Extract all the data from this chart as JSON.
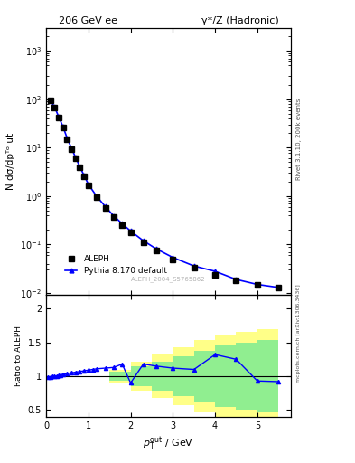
{
  "title_left": "206 GeV ee",
  "title_right": "γ*/Z (Hadronic)",
  "ylabel_main": "N dσ/dpᵀᵒ ut",
  "ylabel_ratio": "Ratio to ALEPH",
  "right_label_main": "Rivet 3.1.10, 200k events",
  "right_label_ratio": "mcplots.cern.ch [arXiv:1306.3436]",
  "watermark": "ALEPH_2004_S5765862",
  "data_x": [
    0.1,
    0.2,
    0.3,
    0.4,
    0.5,
    0.6,
    0.7,
    0.8,
    0.9,
    1.0,
    1.2,
    1.4,
    1.6,
    1.8,
    2.0,
    2.3,
    2.6,
    3.0,
    3.5,
    4.0,
    4.5,
    5.0,
    5.5
  ],
  "data_y": [
    95,
    68,
    42,
    26,
    15,
    9.5,
    6.0,
    3.9,
    2.6,
    1.7,
    0.95,
    0.58,
    0.37,
    0.25,
    0.175,
    0.11,
    0.075,
    0.05,
    0.033,
    0.024,
    0.018,
    0.015,
    0.013
  ],
  "mc_x": [
    0.1,
    0.2,
    0.3,
    0.4,
    0.5,
    0.6,
    0.7,
    0.8,
    0.9,
    1.0,
    1.2,
    1.4,
    1.6,
    1.8,
    2.0,
    2.3,
    2.6,
    3.0,
    3.5,
    4.0,
    4.5,
    5.0,
    5.5
  ],
  "mc_y": [
    95,
    69,
    43,
    27,
    15.5,
    9.8,
    6.2,
    4.0,
    2.65,
    1.75,
    0.98,
    0.61,
    0.39,
    0.27,
    0.19,
    0.12,
    0.082,
    0.054,
    0.036,
    0.028,
    0.019,
    0.015,
    0.013
  ],
  "ratio_x": [
    0.05,
    0.1,
    0.15,
    0.2,
    0.25,
    0.3,
    0.35,
    0.4,
    0.5,
    0.6,
    0.7,
    0.8,
    0.9,
    1.0,
    1.1,
    1.2,
    1.4,
    1.6,
    1.8,
    2.0,
    2.3,
    2.6,
    3.0,
    3.5,
    4.0,
    4.5,
    5.0,
    5.5
  ],
  "ratio_y": [
    0.98,
    0.99,
    0.995,
    1.0,
    1.005,
    1.01,
    1.02,
    1.03,
    1.04,
    1.05,
    1.06,
    1.07,
    1.08,
    1.09,
    1.1,
    1.11,
    1.12,
    1.13,
    1.18,
    0.9,
    1.18,
    1.15,
    1.12,
    1.1,
    1.32,
    1.25,
    0.93,
    0.92
  ],
  "band_yellow_edges": [
    1.5,
    2.0,
    2.5,
    3.0,
    3.5,
    4.0,
    4.5,
    5.0,
    5.5
  ],
  "band_yellow_ylow": [
    0.9,
    0.78,
    0.68,
    0.57,
    0.47,
    0.4,
    0.35,
    0.3,
    0.28
  ],
  "band_yellow_yhigh": [
    1.1,
    1.22,
    1.32,
    1.43,
    1.53,
    1.6,
    1.65,
    1.7,
    1.72
  ],
  "band_green_edges": [
    1.5,
    2.0,
    2.5,
    3.0,
    3.5,
    4.0,
    4.5,
    5.0,
    5.5
  ],
  "band_green_ylow": [
    0.93,
    0.85,
    0.78,
    0.7,
    0.62,
    0.55,
    0.5,
    0.47,
    0.45
  ],
  "band_green_yhigh": [
    1.07,
    1.15,
    1.22,
    1.3,
    1.38,
    1.45,
    1.5,
    1.53,
    1.55
  ],
  "ylim_main": [
    0.009,
    3000
  ],
  "ylim_ratio": [
    0.4,
    2.2
  ],
  "xlim": [
    0,
    5.8
  ],
  "yticks_main": [
    0.01,
    0.1,
    1,
    10,
    100,
    1000
  ],
  "yticks_ratio": [
    0.5,
    1.0,
    1.5,
    2.0
  ],
  "data_color": "black",
  "mc_color": "blue",
  "green_color": "#90EE90",
  "yellow_color": "#FFFF88",
  "background_color": "white",
  "legend_aleph": "ALEPH",
  "legend_mc": "Pythia 8.170 default"
}
